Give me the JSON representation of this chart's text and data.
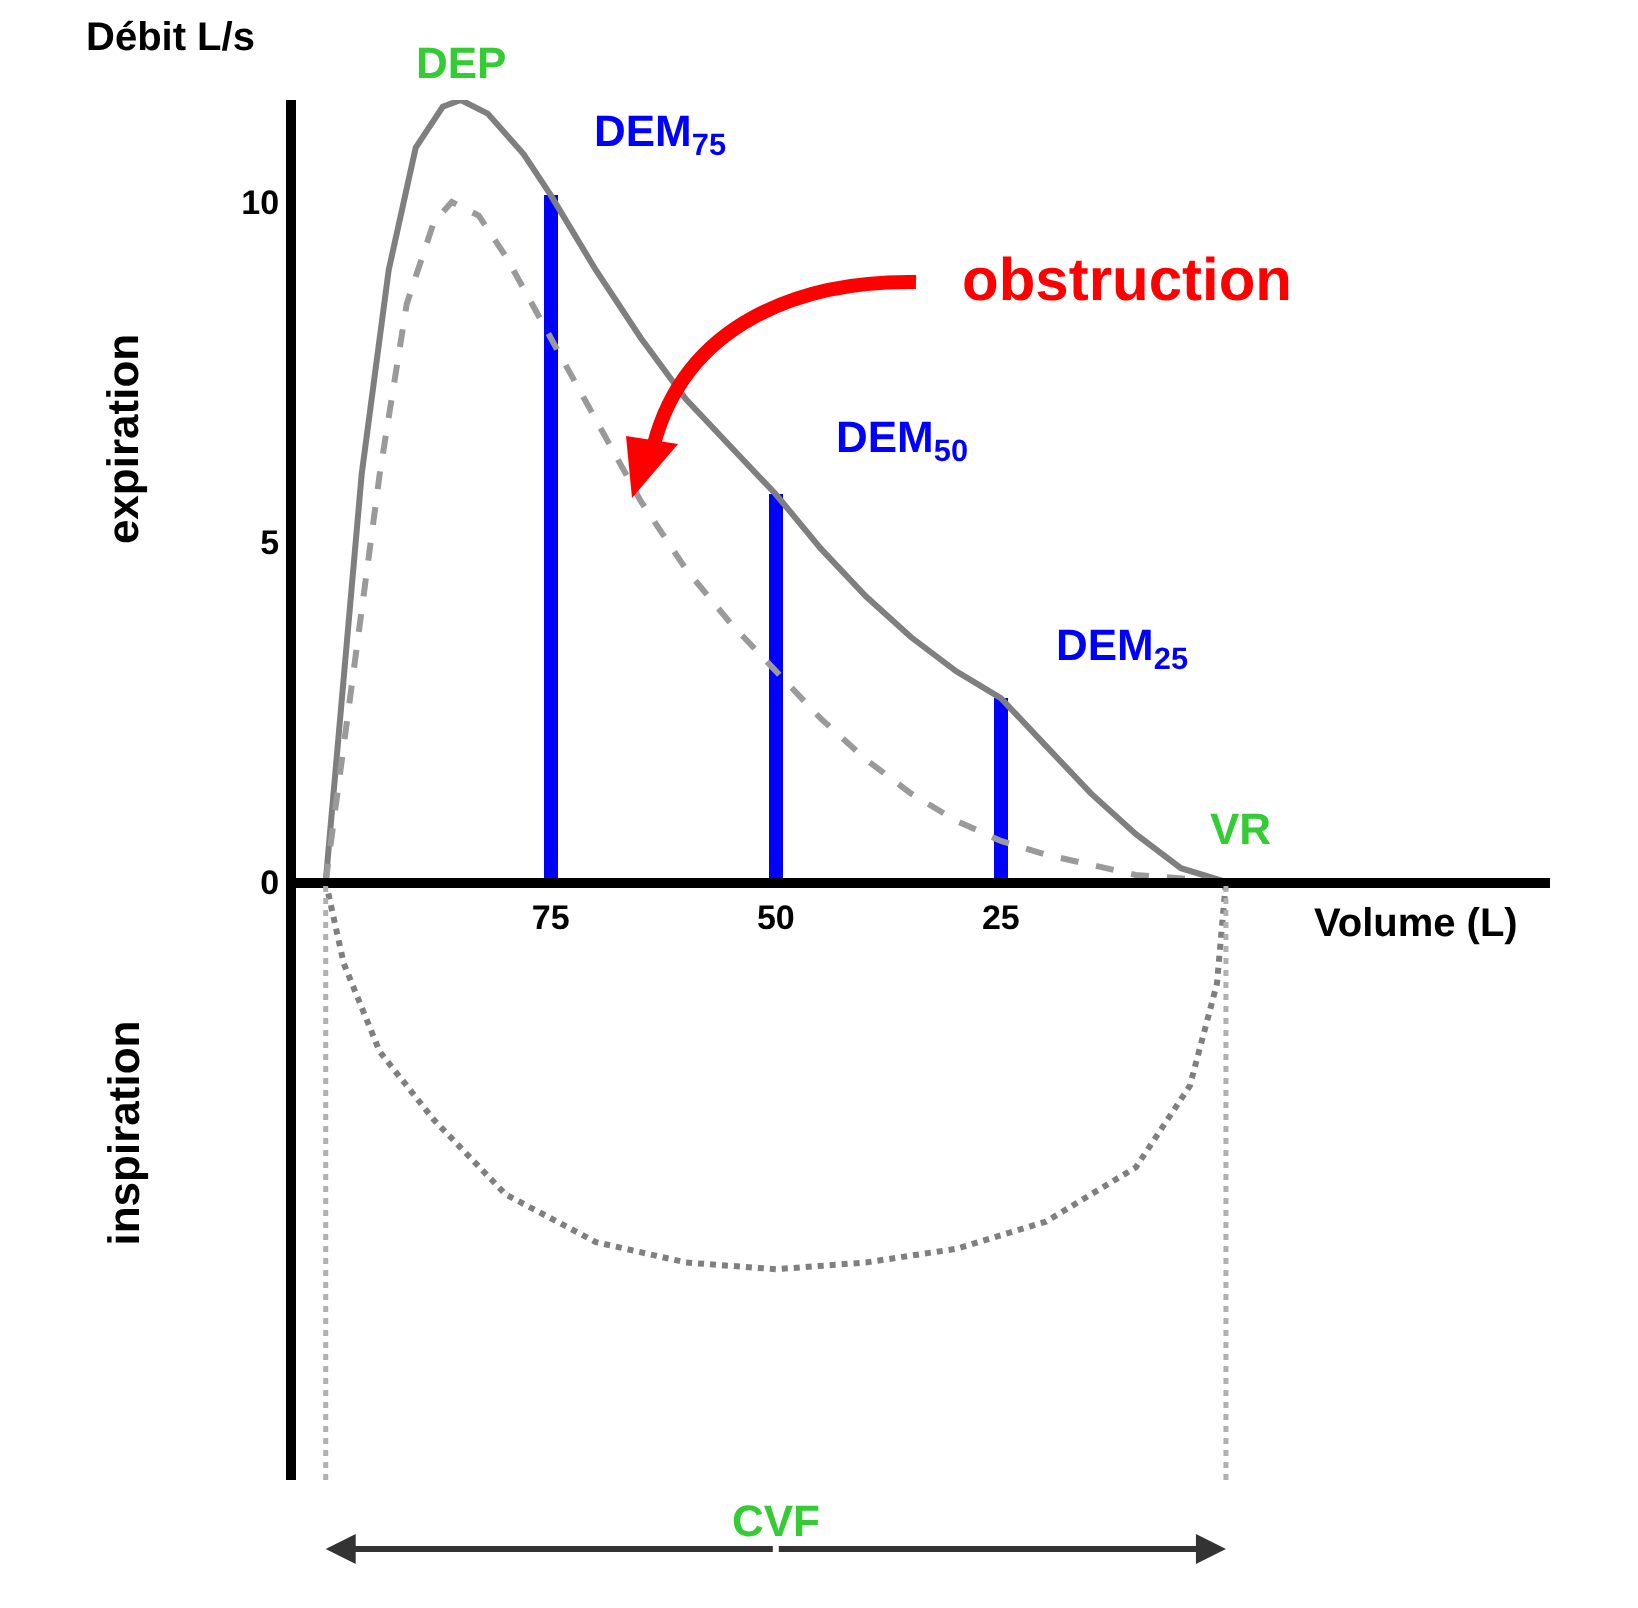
{
  "chart_data": {
    "type": "line",
    "ylabel": "Débit L/s",
    "xlabel": "Volume (L)",
    "xlim": [
      103.3,
      -36
    ],
    "xticks": [
      75,
      50,
      25
    ],
    "ylim": [
      -8.8,
      11.5
    ],
    "yticks": [
      0,
      5,
      10
    ],
    "series": [
      {
        "color": "#7f7f7f",
        "line_style": "solid",
        "x": [
          100,
          98,
          96,
          93,
          90,
          87,
          85,
          82,
          78,
          75,
          70,
          65,
          60,
          55,
          50,
          45,
          40,
          35,
          30,
          25,
          20,
          15,
          10,
          5,
          0
        ],
        "values": [
          0,
          3,
          6,
          9,
          10.8,
          11.4,
          11.5,
          11.3,
          10.7,
          10.1,
          9,
          8,
          7.1,
          6.4,
          5.7,
          4.9,
          4.2,
          3.6,
          3.1,
          2.7,
          2,
          1.3,
          0.7,
          0.2,
          0
        ]
      },
      {
        "color": "#7f7f7f",
        "line_style": "dotted",
        "x": [
          100,
          98,
          94,
          88,
          80,
          70,
          60,
          50,
          40,
          30,
          20,
          10,
          4,
          1,
          0
        ],
        "values": [
          0,
          -1.2,
          -2.5,
          -3.5,
          -4.6,
          -5.3,
          -5.6,
          -5.7,
          -5.6,
          -5.4,
          -5,
          -4.2,
          -3,
          -1.5,
          0
        ]
      },
      {
        "color": "#9a9a9a",
        "line_style": "dashed",
        "x": [
          100,
          97,
          94,
          91,
          88,
          86,
          83,
          80,
          75,
          70,
          65,
          60,
          55,
          50,
          45,
          40,
          35,
          30,
          25,
          20,
          10,
          0
        ],
        "values": [
          0,
          3,
          6,
          8.5,
          9.7,
          10,
          9.8,
          9.2,
          8,
          6.8,
          5.6,
          4.6,
          3.8,
          3.1,
          2.4,
          1.8,
          1.3,
          0.9,
          0.6,
          0.4,
          0.1,
          0
        ]
      },
      {
        "type": "bar",
        "color": "#0000ff",
        "x": [
          75,
          50,
          25
        ],
        "values": [
          10.1,
          5.7,
          2.7
        ]
      }
    ],
    "ref_lines": [
      {
        "axis": "x",
        "value": 100,
        "color": "#b0b0b0",
        "line_style": "dotted"
      },
      {
        "axis": "x",
        "value": 0,
        "color": "#b0b0b0",
        "line_style": "dotted"
      }
    ],
    "annotations": [
      {
        "text": "DEP",
        "x": 85,
        "y": 11.5
      },
      {
        "text": "DEM$_{75}$",
        "x": 75,
        "y": 10.1
      },
      {
        "text": "DEM$_{50}$",
        "x": 50,
        "y": 5.7
      },
      {
        "text": "DEM$_{25}$",
        "x": 25,
        "y": 2.7
      },
      {
        "text": "VR",
        "x": 0,
        "y": 0
      },
      "obstruction",
      "expiration",
      "inspiration",
      "CVF"
    ]
  }
}
